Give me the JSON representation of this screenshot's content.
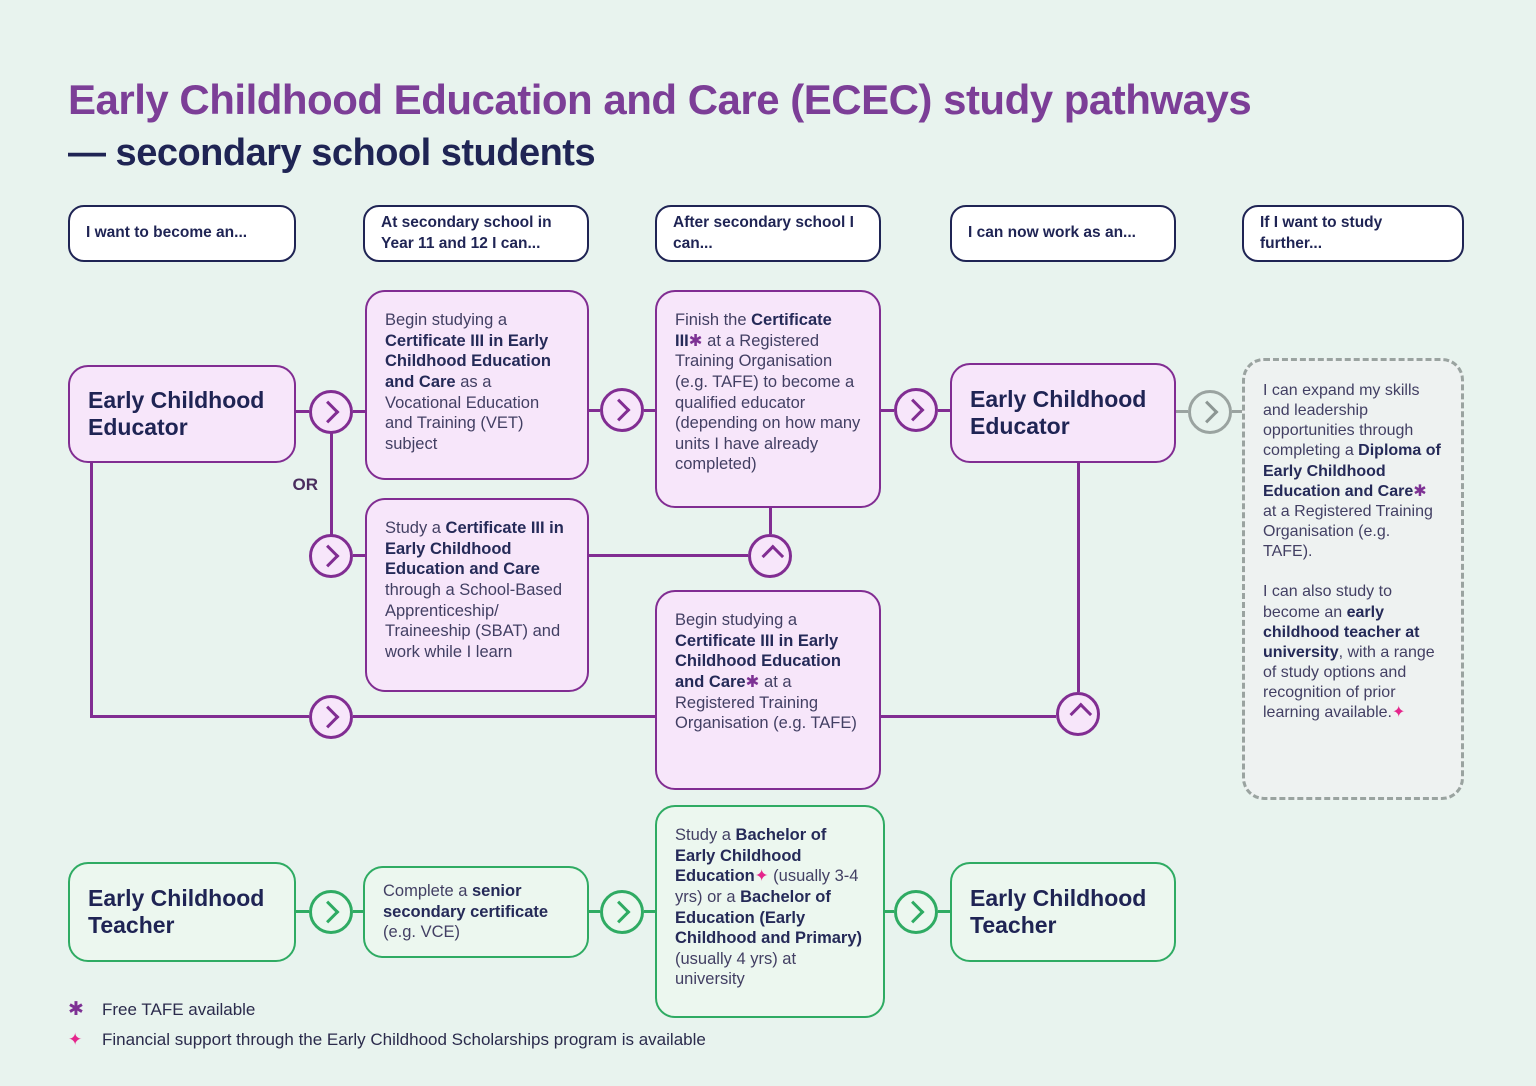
{
  "title": {
    "line1": "Early Childhood Education and Care (ECEC) study pathways",
    "line2": "— secondary school students"
  },
  "colors": {
    "background": "#e8f3ee",
    "purple_accent": "#812d92",
    "purple_fill": "#f7e6fa",
    "title_purple": "#7c3e97",
    "navy_text": "#1f2454",
    "green_accent": "#2fab63",
    "green_fill": "#ecf7ef",
    "pink_accent": "#e5258c",
    "gray_accent": "#9aa3a0"
  },
  "headers": [
    "I want to become an...",
    "At secondary school in Year 11 and 12 I can...",
    "After secondary school I can...",
    "I can now work as an...",
    "If I want to study further..."
  ],
  "connectors": {
    "or_label": "OR"
  },
  "boxes": {
    "educator_start": "Early Childhood Educator",
    "educator_now": "Early Childhood Educator",
    "teacher_start": "Early Childhood Teacher",
    "teacher_now": "Early Childhood Teacher",
    "vet": [
      {
        "t": "Begin studying a ",
        "s": "n"
      },
      {
        "t": "Certificate III in Early Childhood Education and Care",
        "s": "b"
      },
      {
        "t": " as a Vocational Education and Training (VET) subject",
        "s": "n"
      }
    ],
    "sbat": [
      {
        "t": "Study a ",
        "s": "n"
      },
      {
        "t": "Certificate III in Early Childhood Education and Care",
        "s": "b"
      },
      {
        "t": " through a School-Based Apprenticeship/ Traineeship (SBAT) and work while I learn",
        "s": "n"
      }
    ],
    "finish": [
      {
        "t": "Finish the ",
        "s": "n"
      },
      {
        "t": "Certificate III",
        "s": "b"
      },
      {
        "t": "✱",
        "s": "star"
      },
      {
        "t": " at a Registered Training Organisation (e.g. TAFE) to become a qualified educator (depending on how many units I have already completed)",
        "s": "n"
      }
    ],
    "rto": [
      {
        "t": "Begin studying a ",
        "s": "n"
      },
      {
        "t": "Certificate III in Early Childhood Education and Care",
        "s": "b"
      },
      {
        "t": "✱",
        "s": "star"
      },
      {
        "t": " at a Registered Training Organisation (e.g. TAFE)",
        "s": "n"
      }
    ],
    "diploma": {
      "p1": [
        {
          "t": "I can expand my skills and leadership opportunities through completing a ",
          "s": "n"
        },
        {
          "t": "Diploma of Early Childhood Education and Care",
          "s": "b"
        },
        {
          "t": "✱",
          "s": "star"
        },
        {
          "t": " at a Registered Training Organisation (e.g. TAFE).",
          "s": "n"
        }
      ],
      "p2": [
        {
          "t": "I can also study to become an ",
          "s": "n"
        },
        {
          "t": "early childhood teacher at university",
          "s": "b"
        },
        {
          "t": ", with a range of study options and recognition of prior learning available.",
          "s": "n"
        },
        {
          "t": "✦",
          "s": "dia"
        }
      ]
    },
    "vce": [
      {
        "t": "Complete a ",
        "s": "n"
      },
      {
        "t": "senior secondary certificate",
        "s": "b"
      },
      {
        "t": " (e.g. VCE)",
        "s": "n"
      }
    ],
    "bachelor": [
      {
        "t": "Study a ",
        "s": "n"
      },
      {
        "t": "Bachelor of Early Childhood Education",
        "s": "b"
      },
      {
        "t": "✦",
        "s": "dia"
      },
      {
        "t": " (usually 3-4 yrs) or a ",
        "s": "n"
      },
      {
        "t": "Bachelor of Education (Early Childhood and Primary)",
        "s": "b"
      },
      {
        "t": " (usually 4 yrs) at university",
        "s": "n"
      }
    ]
  },
  "legend": [
    {
      "symbol": "✱",
      "text": "Free TAFE available"
    },
    {
      "symbol": "✦",
      "text": "Financial support through the Early Childhood Scholarships program is available"
    }
  ]
}
